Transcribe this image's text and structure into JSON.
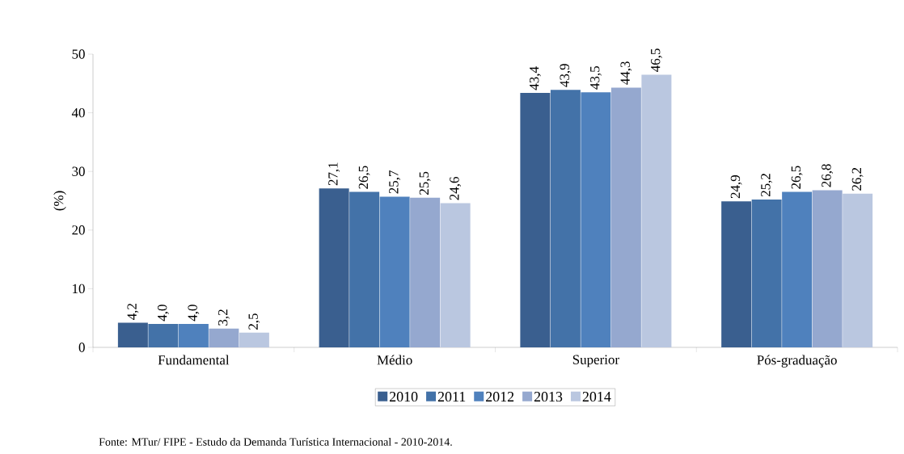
{
  "chart_data": {
    "type": "bar",
    "ylabel": "(%)",
    "categories": [
      "Fundamental",
      "Médio",
      "Superior",
      "Pós-graduação"
    ],
    "series": [
      {
        "name": "2010",
        "color": "#3a5f8f",
        "values": [
          4.2,
          27.1,
          43.4,
          24.9
        ],
        "value_labels": [
          "4,2",
          "27,1",
          "43,4",
          "24,9"
        ]
      },
      {
        "name": "2011",
        "color": "#4372a8",
        "values": [
          4.0,
          26.5,
          43.9,
          25.2
        ],
        "value_labels": [
          "4,0",
          "26,5",
          "43,9",
          "25,2"
        ]
      },
      {
        "name": "2012",
        "color": "#4f81bd",
        "values": [
          4.0,
          25.7,
          43.5,
          26.5
        ],
        "value_labels": [
          "4,0",
          "25,7",
          "43,5",
          "26,5"
        ]
      },
      {
        "name": "2013",
        "color": "#95a8cf",
        "values": [
          3.2,
          25.5,
          44.3,
          26.8
        ],
        "value_labels": [
          "3,2",
          "25,5",
          "44,3",
          "26,8"
        ]
      },
      {
        "name": "2014",
        "color": "#bac7e0",
        "values": [
          2.5,
          24.6,
          46.5,
          26.2
        ],
        "value_labels": [
          "2,5",
          "24,6",
          "46,5",
          "26,2"
        ]
      }
    ],
    "ylim": [
      0,
      50
    ],
    "yticks": [
      0,
      10,
      20,
      30,
      40,
      50
    ],
    "grid": false,
    "legend": "bottom",
    "annotations": [
      "Fonte: MTur/ FIPE - Estudo da Demanda Turística Internacional - 2010-2014."
    ]
  }
}
